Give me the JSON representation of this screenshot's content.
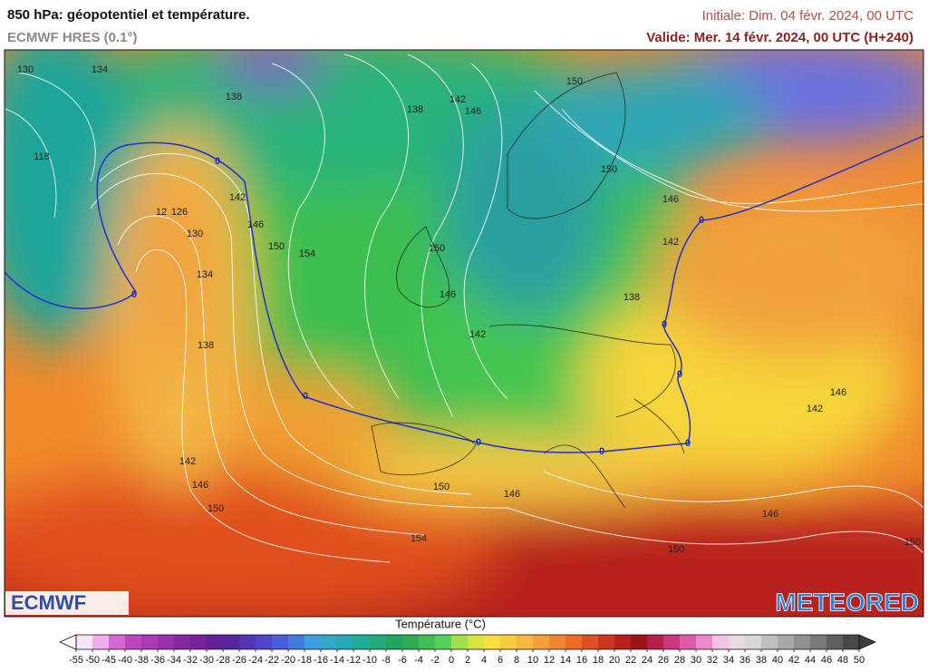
{
  "header": {
    "title": "850 hPa: géopotentiel et température.",
    "model": "ECMWF HRES (0.1°)",
    "initial": "Initiale: Dim. 04 févr. 2024, 00 UTC",
    "valid": "Valide: Mer. 14 févr. 2024, 00 UTC (H+240)"
  },
  "map": {
    "contour_labels": [
      "130",
      "134",
      "138",
      "138",
      "142",
      "146",
      "150",
      "118",
      "12",
      "126",
      "130",
      "134",
      "138",
      "142",
      "146",
      "150",
      "154",
      "150",
      "146",
      "142",
      "138",
      "142",
      "146",
      "150",
      "142",
      "146",
      "150",
      "150",
      "146",
      "154",
      "146",
      "150",
      "150",
      "146",
      "142"
    ],
    "isotherm_labels": [
      "0",
      "0",
      "0",
      "0",
      "0",
      "0",
      "0",
      "0",
      "0"
    ]
  },
  "logos": {
    "left": "ECMWF",
    "right": "METEORED"
  },
  "colorbar": {
    "title": "Température (°C)",
    "ticks": [
      -55,
      -50,
      -45,
      -40,
      -38,
      -36,
      -34,
      -32,
      -30,
      -28,
      -26,
      -24,
      -22,
      -20,
      -18,
      -16,
      -14,
      -12,
      -10,
      -8,
      -6,
      -4,
      -2,
      0,
      2,
      4,
      6,
      8,
      10,
      12,
      14,
      16,
      18,
      20,
      22,
      24,
      26,
      28,
      30,
      32,
      34,
      36,
      38,
      40,
      42,
      44,
      46,
      48,
      50
    ]
  }
}
